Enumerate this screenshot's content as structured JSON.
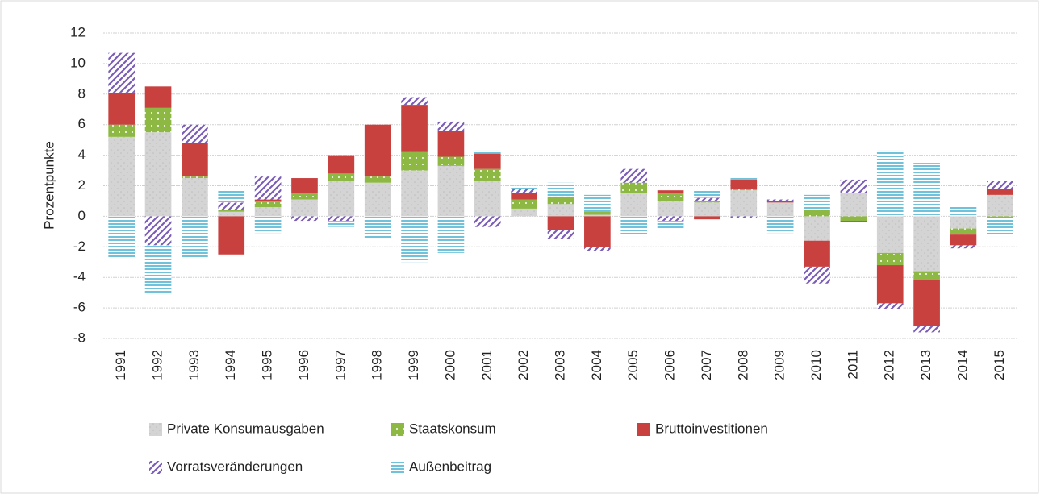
{
  "chart_data": {
    "type": "stacked_bar",
    "y_label": "Prozentpunkte",
    "categories": [
      "1991",
      "1992",
      "1993",
      "1994",
      "1995",
      "1996",
      "1997",
      "1998",
      "1999",
      "2000",
      "2001",
      "2002",
      "2003",
      "2004",
      "2005",
      "2006",
      "2007",
      "2008",
      "2009",
      "2010",
      "2011",
      "2012",
      "2013",
      "2014",
      "2015"
    ],
    "series": [
      {
        "name": "Private Konsumausgaben",
        "color": "#d4d4d4",
        "values": [
          5.2,
          5.5,
          2.5,
          0.3,
          0.6,
          1.1,
          2.3,
          2.2,
          3.0,
          3.3,
          2.3,
          0.5,
          0.8,
          0.1,
          1.5,
          1.0,
          0.9,
          1.7,
          0.9,
          -1.6,
          1.5,
          -2.4,
          -3.6,
          -0.8,
          1.4
        ]
      },
      {
        "name": "Staatskonsum",
        "color": "#8db843",
        "values": [
          0.8,
          1.6,
          0.1,
          0.1,
          0.4,
          0.4,
          0.5,
          0.4,
          1.2,
          0.6,
          0.8,
          0.6,
          0.5,
          0.2,
          0.7,
          0.5,
          0.1,
          0.1,
          0.0,
          0.4,
          -0.3,
          -0.8,
          -0.6,
          -0.4,
          -0.1
        ]
      },
      {
        "name": "Bruttoinvestitionen",
        "color": "#c9413f",
        "values": [
          2.1,
          1.4,
          2.2,
          -2.5,
          0.1,
          1.0,
          1.2,
          3.4,
          3.1,
          1.7,
          1.0,
          0.4,
          -0.9,
          -2.0,
          0.0,
          0.2,
          -0.2,
          0.6,
          0.1,
          -1.7,
          -0.1,
          -2.5,
          -3.0,
          -0.7,
          0.4
        ]
      },
      {
        "name": "Vorratsveränderungen",
        "color": "#7a5cb8",
        "values": [
          2.6,
          -1.9,
          1.2,
          0.5,
          1.5,
          -0.3,
          -0.3,
          0.0,
          0.5,
          0.6,
          -0.7,
          0.3,
          -0.6,
          -0.3,
          0.9,
          -0.3,
          0.2,
          -0.1,
          0.1,
          -1.1,
          0.9,
          -0.4,
          -0.4,
          -0.2,
          0.5
        ]
      },
      {
        "name": "Außenbeitrag",
        "color": "#4bb3d0",
        "values": [
          -2.8,
          -3.2,
          -2.8,
          0.9,
          -1.1,
          0.1,
          -0.4,
          -1.5,
          -3.0,
          -2.4,
          0.2,
          0.2,
          0.9,
          1.1,
          -1.3,
          -0.6,
          0.6,
          0.2,
          -1.1,
          1.0,
          0.0,
          4.3,
          3.5,
          0.7,
          -1.2
        ]
      }
    ],
    "ylim": [
      -8,
      12
    ],
    "yticks": [
      -8,
      -6,
      -4,
      -2,
      0,
      2,
      4,
      6,
      8,
      10,
      12
    ],
    "grid": true,
    "legend": "bottom"
  }
}
